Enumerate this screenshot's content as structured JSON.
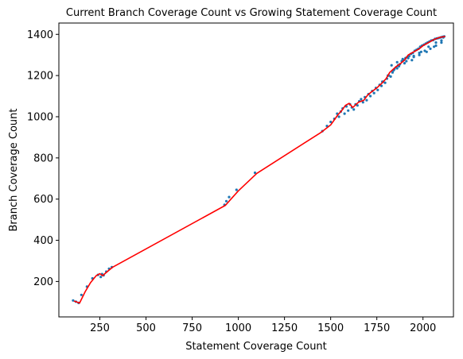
{
  "chart_data": {
    "type": "scatter",
    "title": "Current Branch Coverage Count vs Growing Statement Coverage Count",
    "xlabel": "Statement Coverage Count",
    "ylabel": "Branch Coverage Count",
    "xlim": [
      28,
      2165
    ],
    "ylim": [
      28,
      1455
    ],
    "xticks": [
      250,
      500,
      750,
      1000,
      1250,
      1500,
      1750,
      2000
    ],
    "yticks": [
      200,
      400,
      600,
      800,
      1000,
      1200,
      1400
    ],
    "grid": false,
    "colors": {
      "scatter": "#1f77b4",
      "line": "#ff0000"
    },
    "line": {
      "x": [
        110,
        125,
        140,
        170,
        200,
        230,
        250,
        265,
        280,
        300,
        320,
        930,
        960,
        1000,
        1100,
        1450,
        1500,
        1540,
        1560,
        1580,
        1600,
        1620,
        1650,
        1680,
        1700,
        1720,
        1750,
        1780,
        1800,
        1820,
        1850,
        1880,
        1900,
        1920,
        1950,
        1980,
        2000,
        2030,
        2060,
        2090,
        2120
      ],
      "y": [
        105,
        100,
        95,
        150,
        195,
        228,
        238,
        228,
        240,
        255,
        270,
        570,
        600,
        640,
        725,
        925,
        960,
        1010,
        1030,
        1055,
        1065,
        1045,
        1070,
        1080,
        1105,
        1120,
        1140,
        1165,
        1185,
        1215,
        1240,
        1260,
        1275,
        1300,
        1315,
        1330,
        1345,
        1360,
        1375,
        1385,
        1390
      ]
    },
    "scatter": {
      "x": [
        105,
        120,
        135,
        150,
        180,
        210,
        240,
        255,
        262,
        270,
        285,
        300,
        315,
        925,
        935,
        950,
        990,
        1090,
        1455,
        1480,
        1500,
        1520,
        1535,
        1545,
        1555,
        1565,
        1575,
        1585,
        1595,
        1605,
        1615,
        1625,
        1635,
        1645,
        1655,
        1665,
        1675,
        1685,
        1695,
        1705,
        1715,
        1725,
        1735,
        1745,
        1755,
        1765,
        1775,
        1785,
        1795,
        1805,
        1815,
        1825,
        1835,
        1845,
        1855,
        1865,
        1875,
        1885,
        1895,
        1905,
        1915,
        1925,
        1935,
        1945,
        1955,
        1965,
        1975,
        1985,
        1995,
        2005,
        2015,
        2025,
        2035,
        2045,
        2055,
        2065,
        2075,
        2085,
        2095,
        2105,
        2115,
        1830,
        1860,
        1890,
        1920,
        1950,
        1980,
        2010,
        2040,
        2070,
        2100,
        1860,
        1900,
        1940,
        1980,
        2020,
        2060,
        2100,
        1780,
        1810,
        1840,
        1870,
        1910,
        1950,
        1990,
        2030,
        2070,
        2110
      ],
      "y": [
        108,
        102,
        96,
        135,
        175,
        215,
        232,
        222,
        236,
        230,
        248,
        262,
        270,
        572,
        590,
        610,
        645,
        728,
        930,
        955,
        975,
        990,
        1015,
        1000,
        1025,
        1040,
        1015,
        1050,
        1030,
        1060,
        1045,
        1035,
        1060,
        1055,
        1075,
        1085,
        1070,
        1095,
        1080,
        1110,
        1100,
        1125,
        1115,
        1140,
        1130,
        1155,
        1150,
        1170,
        1165,
        1185,
        1200,
        1195,
        1215,
        1230,
        1240,
        1250,
        1255,
        1270,
        1275,
        1285,
        1290,
        1295,
        1305,
        1310,
        1320,
        1325,
        1330,
        1340,
        1345,
        1350,
        1355,
        1360,
        1365,
        1370,
        1372,
        1378,
        1380,
        1382,
        1385,
        1388,
        1390,
        1250,
        1265,
        1280,
        1285,
        1295,
        1310,
        1320,
        1330,
        1345,
        1360,
        1235,
        1260,
        1275,
        1300,
        1315,
        1340,
        1370,
        1170,
        1200,
        1225,
        1245,
        1270,
        1290,
        1315,
        1340,
        1360,
        1385
      ]
    }
  }
}
